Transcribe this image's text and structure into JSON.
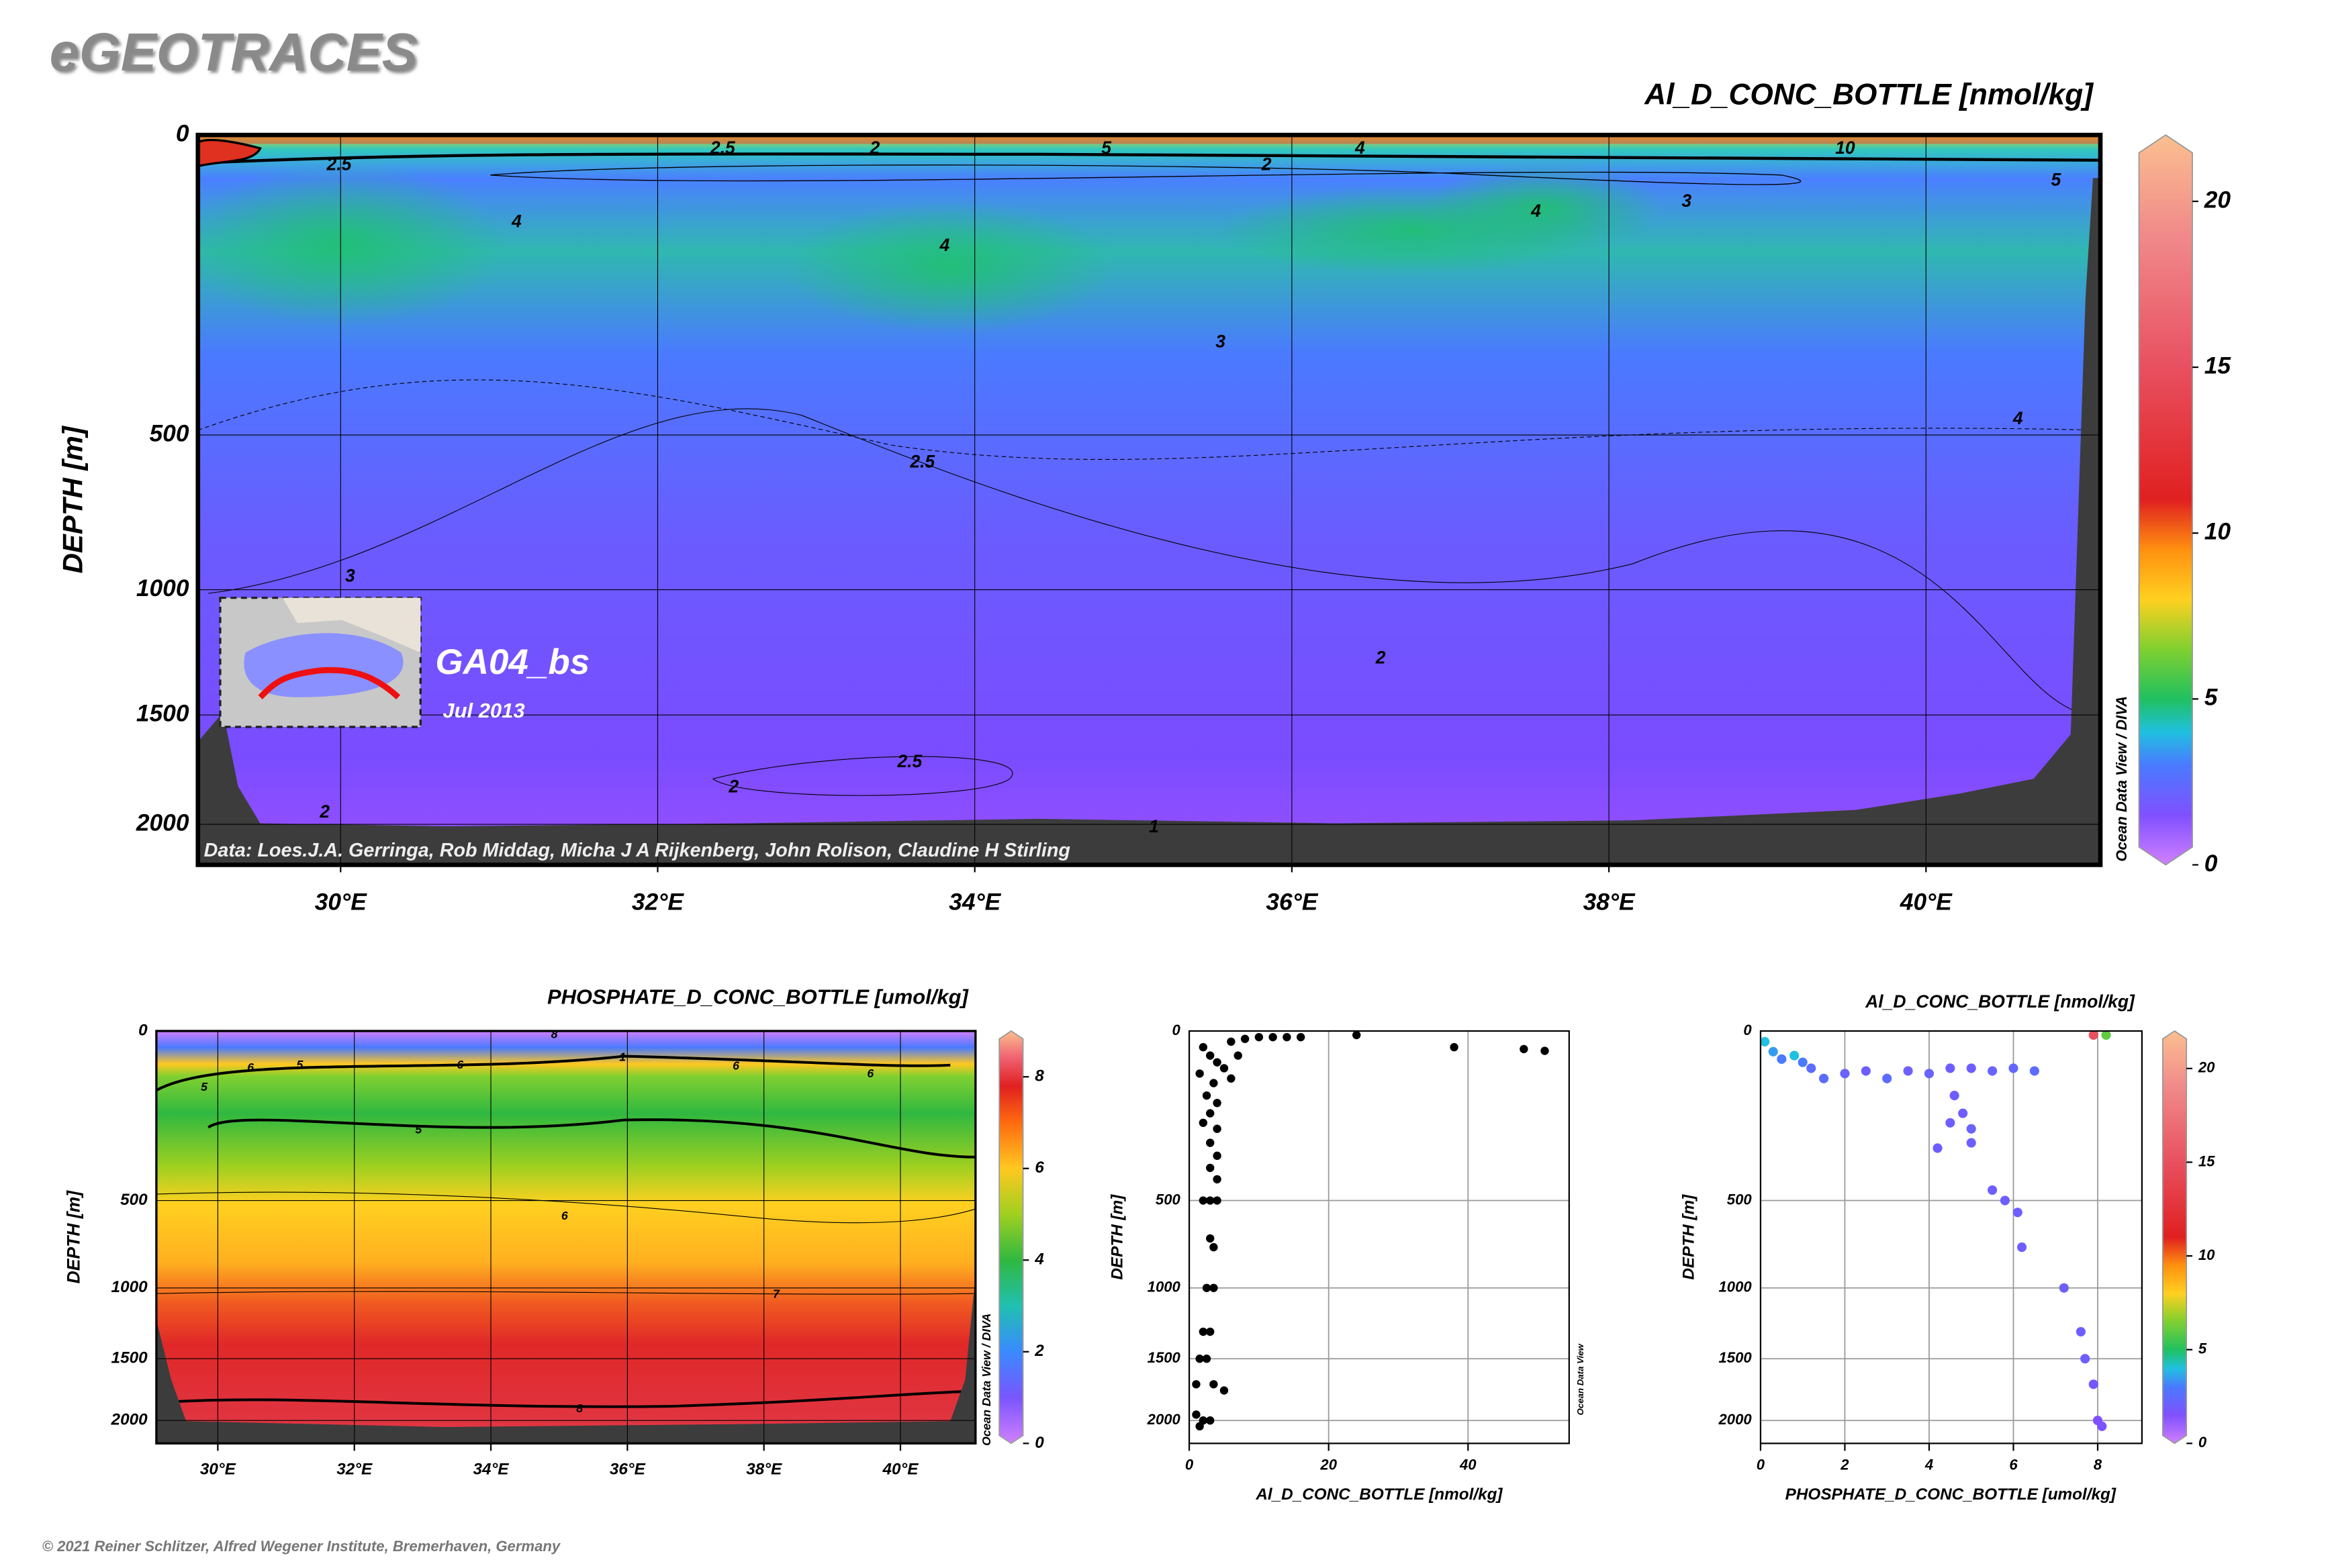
{
  "header": {
    "logo": "eGEOTRACES",
    "footer": "© 2021 Reiner Schlitzer, Alfred Wegener Institute, Bremerhaven, Germany"
  },
  "chart_data": [
    {
      "type": "section",
      "title": "Al_D_CONC_BOTTLE [nmol/kg]",
      "y_label": "DEPTH [m]",
      "credit": "Data: Loes.J.A. Gerringa, Rob Middag, Micha J A Rijkenberg, John Rolison, Claudine H Stirling",
      "watermark": "Ocean Data View / DIVA",
      "cruise": "GA04_bs",
      "date": "Jul 2013",
      "xlim": [
        29.1,
        41.1
      ],
      "xticks": [
        {
          "value": 30,
          "label": "30°E"
        },
        {
          "value": 32,
          "label": "32°E"
        },
        {
          "value": 34,
          "label": "34°E"
        },
        {
          "value": 36,
          "label": "36°E"
        },
        {
          "value": 38,
          "label": "38°E"
        },
        {
          "value": 40,
          "label": "40°E"
        }
      ],
      "ylim": [
        0,
        2200
      ],
      "yscale": "power",
      "yexponent": 0.6,
      "y_reversed": true,
      "yticks": [
        0,
        500,
        1000,
        1500,
        2000
      ],
      "grid": true,
      "clim": [
        0,
        22
      ],
      "cticks": [
        0,
        5,
        10,
        15,
        20
      ],
      "colormap": [
        [
          0,
          "#d080ff"
        ],
        [
          1.5,
          "#8050ff"
        ],
        [
          3,
          "#4a7aff"
        ],
        [
          4,
          "#20c0e0"
        ],
        [
          5,
          "#20c060"
        ],
        [
          6.5,
          "#80d030"
        ],
        [
          8,
          "#ffd020"
        ],
        [
          9.5,
          "#ff9010"
        ],
        [
          11,
          "#e02020"
        ],
        [
          15,
          "#e85060"
        ],
        [
          19,
          "#f08a8a"
        ],
        [
          22,
          "#fbbf90"
        ]
      ],
      "contour_labels": {
        "text": [
          "2.5",
          "2.5",
          "2",
          "5",
          "4",
          "10",
          "2",
          "3",
          "5",
          "4",
          "4",
          "4",
          "3",
          "2.5",
          "4",
          "3",
          "2",
          "2.5",
          "2",
          "2",
          "1"
        ],
        "x": [
          29.99,
          32.41,
          33.37,
          34.83,
          36.43,
          39.49,
          35.84,
          38.49,
          40.82,
          31.11,
          37.54,
          33.81,
          35.55,
          33.67,
          40.58,
          30.06,
          36.56,
          33.59,
          32.48,
          29.9,
          35.13
        ],
        "y": [
          11,
          3,
          3,
          3,
          3,
          3,
          11,
          41,
          22,
          64,
          52,
          96,
          271,
          580,
          458,
          954,
          1266,
          1710,
          1826,
          1945,
          2017
        ]
      }
    },
    {
      "type": "section",
      "title": "PHOSPHATE_D_CONC_BOTTLE [umol/kg]",
      "y_label": "DEPTH [m]",
      "watermark": "Ocean Data View / DIVA",
      "xlim": [
        29.1,
        41.1
      ],
      "xticks": [
        {
          "value": 30,
          "label": "30°E"
        },
        {
          "value": 32,
          "label": "32°E"
        },
        {
          "value": 34,
          "label": "34°E"
        },
        {
          "value": 36,
          "label": "36°E"
        },
        {
          "value": 38,
          "label": "38°E"
        },
        {
          "value": 40,
          "label": "40°E"
        }
      ],
      "ylim": [
        0,
        2200
      ],
      "yscale": "power",
      "yexponent": 0.6,
      "y_reversed": true,
      "yticks": [
        0,
        500,
        1000,
        1500,
        2000
      ],
      "grid": true,
      "clim": [
        0,
        9
      ],
      "cticks": [
        0,
        2,
        4,
        6,
        8
      ],
      "colormap": [
        [
          0,
          "#d080ff"
        ],
        [
          1,
          "#7a55ff"
        ],
        [
          2,
          "#3a8aff"
        ],
        [
          3,
          "#20c0b0"
        ],
        [
          4,
          "#30b840"
        ],
        [
          5,
          "#a0d020"
        ],
        [
          6,
          "#ffc820"
        ],
        [
          7,
          "#ff6a10"
        ],
        [
          7.8,
          "#e02020"
        ],
        [
          8.4,
          "#f06070"
        ],
        [
          9,
          "#fbbf90"
        ]
      ],
      "contour_labels": {
        "text": [
          "8",
          "6",
          "5",
          "6",
          "1",
          "6",
          "6",
          "5",
          "5",
          "6",
          "7",
          "8"
        ],
        "x": [
          34.93,
          30.48,
          31.2,
          33.55,
          35.93,
          37.59,
          39.56,
          29.8,
          32.94,
          35.08,
          38.18,
          35.3
        ],
        "y": [
          1,
          40,
          35,
          35,
          23,
          37,
          51,
          80,
          205,
          581,
          1045,
          1905
        ]
      }
    },
    {
      "type": "scatter",
      "x_label": "Al_D_CONC_BOTTLE [nmol/kg]",
      "y_label": "DEPTH [m]",
      "watermark": "Ocean Data View",
      "color": "#000000",
      "xlim": [
        0,
        54.5
      ],
      "xticks": [
        0,
        20,
        40
      ],
      "ylim": [
        0,
        2200
      ],
      "yscale": "power",
      "yexponent": 0.6,
      "y_reversed": true,
      "yticks": [
        0,
        500,
        1000,
        1500,
        2000
      ],
      "grid": true,
      "x": [
        2,
        3,
        4,
        1.5,
        3.5,
        2.5,
        4,
        3,
        2,
        4,
        3,
        4,
        3,
        4,
        2,
        3,
        4,
        3,
        3.5,
        2.5,
        3.5,
        2,
        3,
        1.5,
        2.5,
        1,
        3.5,
        5,
        1,
        2,
        3,
        1.5,
        6,
        8,
        10,
        12,
        14,
        16,
        24,
        38,
        48,
        51,
        5,
        6,
        7
      ],
      "y": [
        10,
        20,
        30,
        50,
        70,
        100,
        120,
        150,
        180,
        200,
        250,
        300,
        350,
        400,
        500,
        500,
        500,
        700,
        750,
        1000,
        1000,
        1300,
        1300,
        1500,
        1500,
        1700,
        1700,
        1750,
        1950,
        2000,
        2000,
        2050,
        5,
        3,
        2,
        2,
        2,
        2,
        1,
        10,
        12,
        14,
        40,
        60,
        20
      ]
    },
    {
      "type": "scatter",
      "title": "Al_D_CONC_BOTTLE [nmol/kg]",
      "x_label": "PHOSPHATE_D_CONC_BOTTLE [umol/kg]",
      "y_label": "DEPTH [m]",
      "xlim": [
        0,
        9.05
      ],
      "xticks": [
        0,
        2,
        4,
        6,
        8
      ],
      "ylim": [
        0,
        2200
      ],
      "yscale": "power",
      "yexponent": 0.6,
      "y_reversed": true,
      "yticks": [
        0,
        500,
        1000,
        1500,
        2000
      ],
      "grid": true,
      "clim": [
        0,
        22
      ],
      "cticks": [
        0,
        5,
        10,
        15,
        20
      ],
      "colormap": [
        [
          0,
          "#d080ff"
        ],
        [
          1.5,
          "#8050ff"
        ],
        [
          3,
          "#4a7aff"
        ],
        [
          4,
          "#20c0e0"
        ],
        [
          5,
          "#20c060"
        ],
        [
          6.5,
          "#80d030"
        ],
        [
          8,
          "#ffd020"
        ],
        [
          9.5,
          "#ff9010"
        ],
        [
          11,
          "#e02020"
        ],
        [
          15,
          "#e85060"
        ],
        [
          19,
          "#f08a8a"
        ],
        [
          22,
          "#fbbf90"
        ]
      ],
      "x": [
        0.1,
        0.3,
        0.5,
        0.8,
        1,
        1.2,
        1.5,
        2,
        2.5,
        3,
        3.5,
        4,
        4.5,
        5,
        5.5,
        6,
        6.5,
        4.6,
        4.8,
        5,
        5,
        4.5,
        4.2,
        5.5,
        5.8,
        6.1,
        6.2,
        7.2,
        7.6,
        7.7,
        7.9,
        8,
        8.1,
        7.9,
        8.2
      ],
      "y": [
        5,
        15,
        25,
        20,
        30,
        40,
        60,
        50,
        45,
        60,
        45,
        50,
        40,
        40,
        45,
        40,
        45,
        100,
        150,
        200,
        250,
        180,
        270,
        450,
        500,
        560,
        750,
        1000,
        1300,
        1500,
        1700,
        2000,
        2050,
        1,
        1
      ],
      "color_values": [
        4,
        3.5,
        3,
        4,
        3,
        2.5,
        2.5,
        2.2,
        2,
        2.5,
        2,
        2.2,
        2,
        2,
        2.2,
        2.3,
        2.5,
        2,
        2,
        2.2,
        2,
        2,
        2,
        2,
        2,
        2,
        2,
        2,
        2,
        2,
        1.8,
        1.5,
        1.6,
        15,
        6
      ]
    }
  ]
}
